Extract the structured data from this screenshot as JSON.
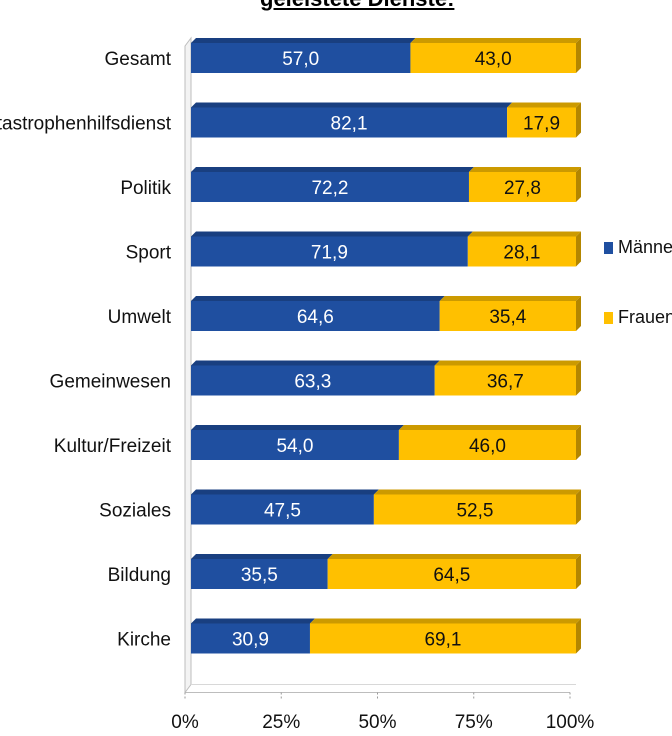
{
  "chart_data": {
    "type": "bar",
    "stacked": true,
    "orientation": "horizontal",
    "percent": true,
    "title": "geleistete Dienste:",
    "categories": [
      "Gesamt",
      "Katastrophenhilfsdienst",
      "Politik",
      "Sport",
      "Umwelt",
      "Gemeinwesen",
      "Kultur/Freizeit",
      "Soziales",
      "Bildung",
      "Kirche"
    ],
    "series": [
      {
        "name": "Männer",
        "color": "#1F4FA0",
        "values": [
          57.0,
          82.1,
          72.2,
          71.9,
          64.6,
          63.3,
          54.0,
          47.5,
          35.5,
          30.9
        ],
        "labels": [
          "57,0",
          "82,1",
          "72,2",
          "71,9",
          "64,6",
          "63,3",
          "54,0",
          "47,5",
          "35,5",
          "30,9"
        ]
      },
      {
        "name": "Frauen",
        "color": "#FFC000",
        "values": [
          43.0,
          17.9,
          27.8,
          28.1,
          35.4,
          36.7,
          46.0,
          52.5,
          64.5,
          69.1
        ],
        "labels": [
          "43,0",
          "17,9",
          "27,8",
          "28,1",
          "35,4",
          "36,7",
          "46,0",
          "52,5",
          "64,5",
          "69,1"
        ]
      }
    ],
    "xlim": [
      0,
      100
    ],
    "xticks": [
      "0%",
      "25%",
      "50%",
      "75%",
      "100%"
    ],
    "legend_position": "right",
    "grid": false
  }
}
